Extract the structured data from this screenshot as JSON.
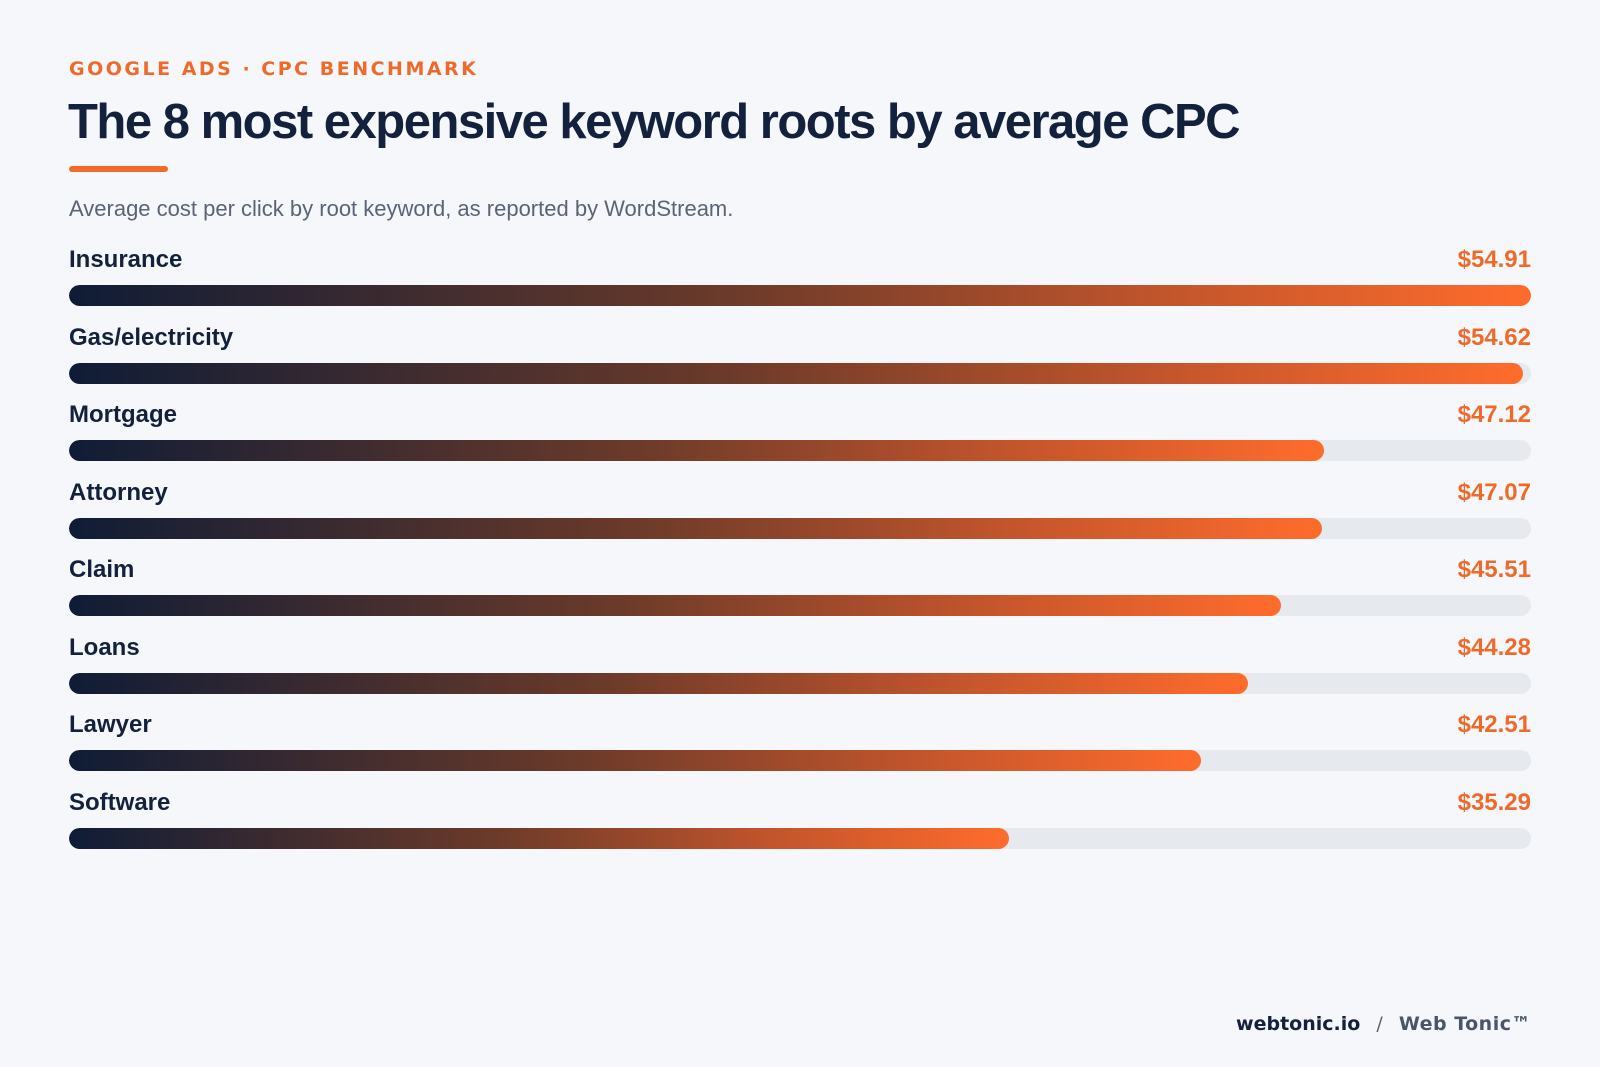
{
  "header": {
    "eyebrow": "GOOGLE ADS · CPC BENCHMARK",
    "title": "The 8 most expensive keyword roots by average CPC",
    "subtitle": "Average cost per click by root keyword, as reported by WordStream."
  },
  "colors": {
    "accent": "#ef6a2a",
    "title": "#14213d",
    "bar_start": "#0f1c36",
    "bar_end": "#ff6c2c",
    "track": "#e6e9ee",
    "background": "#f5f7fa"
  },
  "chart_data": {
    "type": "bar",
    "orientation": "horizontal",
    "categories": [
      "Insurance",
      "Gas/electricity",
      "Mortgage",
      "Attorney",
      "Claim",
      "Loans",
      "Lawyer",
      "Software"
    ],
    "values": [
      54.91,
      54.62,
      47.12,
      47.07,
      45.51,
      44.28,
      42.51,
      35.29
    ],
    "value_labels": [
      "$54.91",
      "$54.62",
      "$47.12",
      "$47.07",
      "$45.51",
      "$44.28",
      "$42.51",
      "$35.29"
    ],
    "xlim": [
      0,
      54.91
    ],
    "grid": false,
    "legend": "none"
  },
  "footer": {
    "site": "webtonic.io",
    "separator": "/",
    "brand": "Web Tonic™"
  }
}
